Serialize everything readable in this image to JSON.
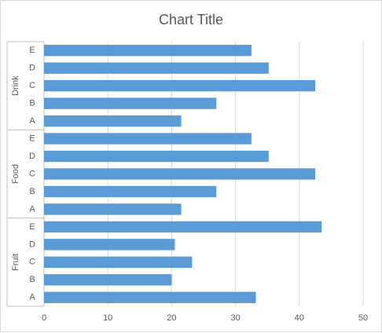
{
  "chart_data": {
    "type": "bar",
    "orientation": "horizontal",
    "title": "Chart Title",
    "groups": [
      {
        "name": "Drink",
        "categories": [
          "E",
          "D",
          "C",
          "B",
          "A"
        ],
        "values": [
          32.5,
          35.2,
          42.5,
          27,
          21.5
        ]
      },
      {
        "name": "Food",
        "categories": [
          "E",
          "D",
          "C",
          "B",
          "A"
        ],
        "values": [
          32.5,
          35.2,
          42.5,
          27,
          21.5
        ]
      },
      {
        "name": "Fruit",
        "categories": [
          "E",
          "D",
          "C",
          "B",
          "A"
        ],
        "values": [
          43.5,
          20.5,
          23.2,
          20,
          33.2
        ]
      }
    ],
    "xlim": [
      0,
      50
    ],
    "xticks": [
      "0",
      "10",
      "20",
      "30",
      "40",
      "50"
    ],
    "grid": true,
    "legend": "none",
    "bar_color": "#5b9bd5",
    "gridline_color": "#d9d9d9"
  }
}
